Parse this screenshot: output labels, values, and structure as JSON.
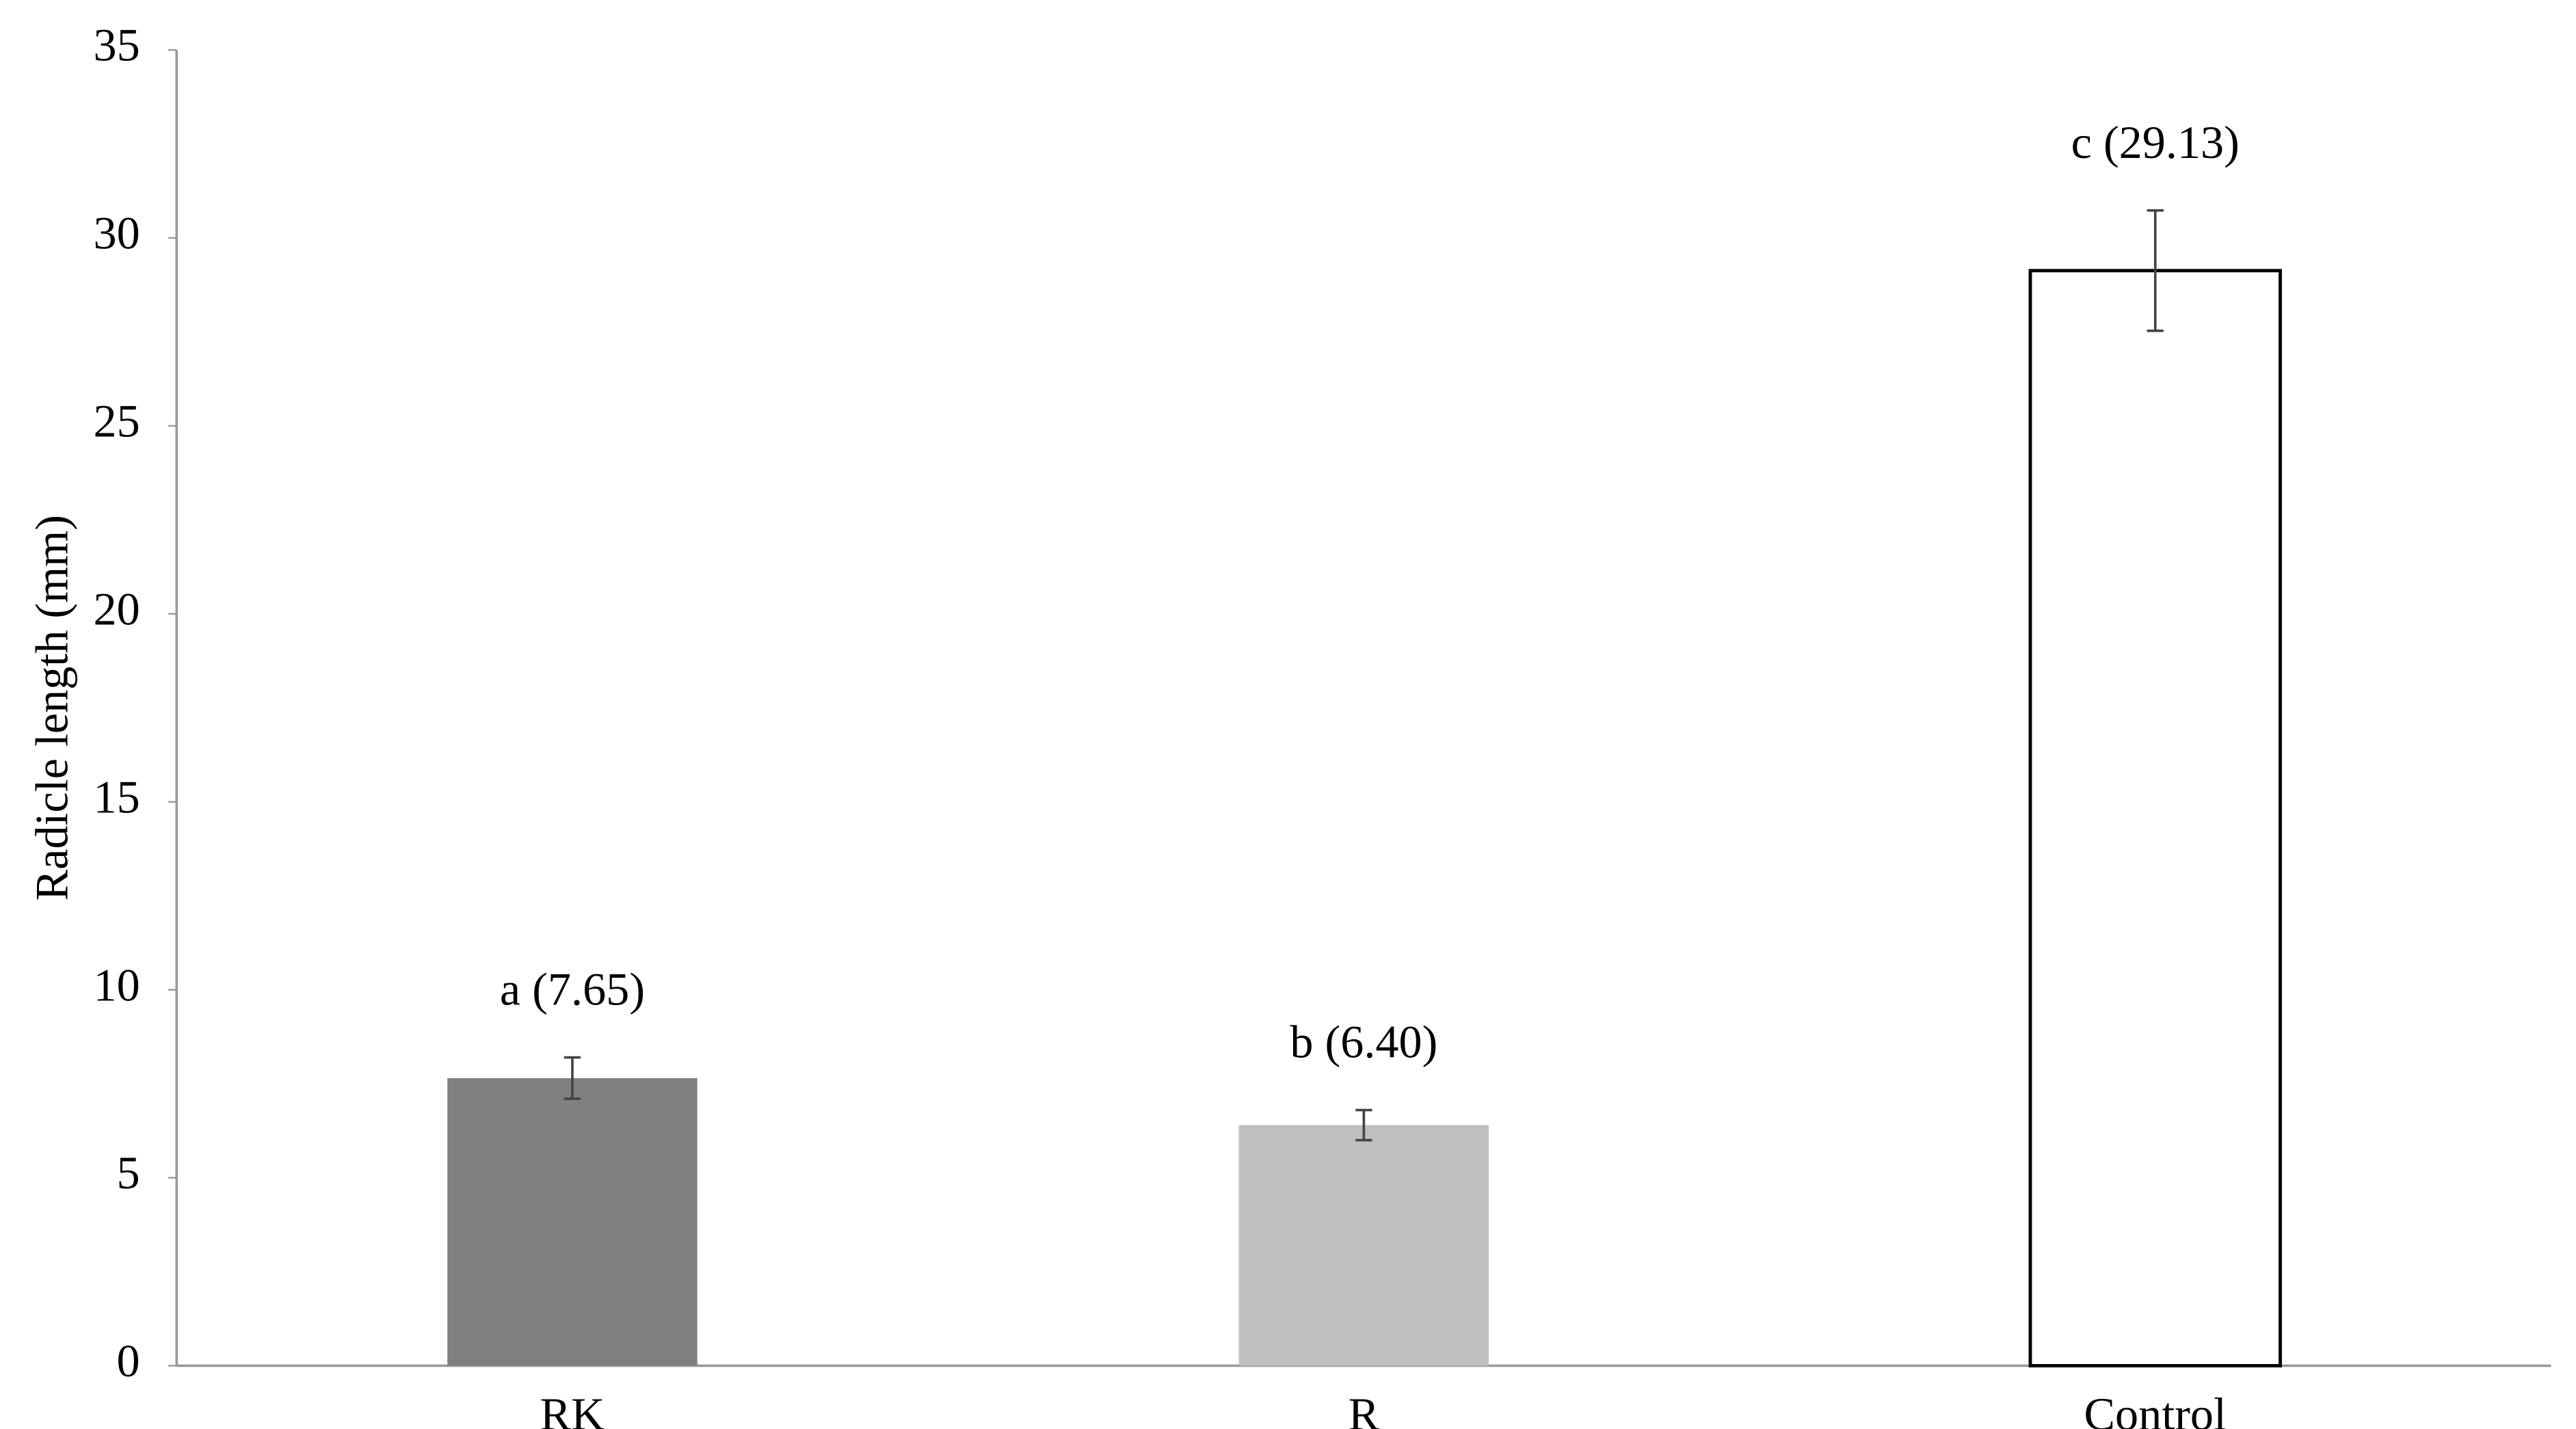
{
  "chart_data": {
    "type": "bar",
    "y_label": "Radicle length (mm)",
    "categories": [
      "RK",
      "R",
      "Control"
    ],
    "values": [
      7.65,
      6.4,
      29.13
    ],
    "errors": [
      0.55,
      0.4,
      1.6
    ],
    "value_labels": [
      "a (7.65)",
      "b (6.40)",
      "c (29.13)"
    ],
    "colors": [
      "#808080",
      "#bfbfbf",
      "#ffffff"
    ],
    "ylim": [
      0,
      35
    ],
    "yticks": [
      0,
      5,
      10,
      15,
      20,
      25,
      30,
      35
    ],
    "grid": false
  }
}
